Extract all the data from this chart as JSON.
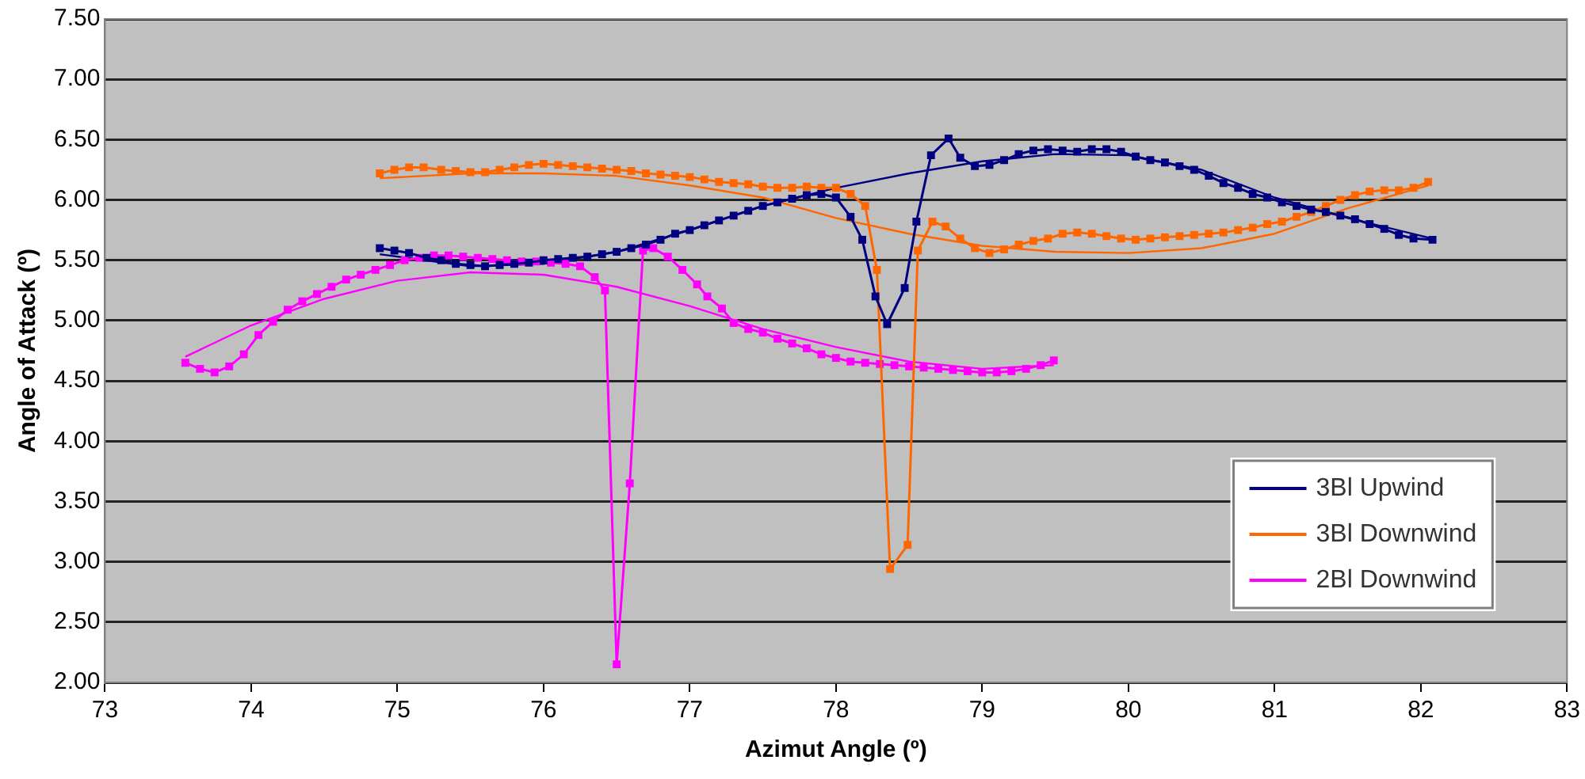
{
  "chart_data": {
    "type": "line",
    "xlabel": "Azimut Angle (º)",
    "ylabel": "Angle of Attack (º)",
    "xlim": [
      73,
      83
    ],
    "xticks": [
      73,
      74,
      75,
      76,
      77,
      78,
      79,
      80,
      81,
      82,
      83
    ],
    "ylim": [
      2,
      7.5
    ],
    "yticks": [
      {
        "value": 2,
        "label": "2.00"
      },
      {
        "value": 2.5,
        "label": "2.50"
      },
      {
        "value": 3,
        "label": "3.00"
      },
      {
        "value": 3.5,
        "label": "3.50"
      },
      {
        "value": 4,
        "label": "4.00"
      },
      {
        "value": 4.5,
        "label": "4.50"
      },
      {
        "value": 5,
        "label": "5.00"
      },
      {
        "value": 5.5,
        "label": "5.50"
      },
      {
        "value": 6,
        "label": "6.00"
      },
      {
        "value": 6.5,
        "label": "6.50"
      },
      {
        "value": 7,
        "label": "7.00"
      },
      {
        "value": 7.5,
        "label": "7.50"
      }
    ],
    "grid": "y",
    "legend": "bottom right",
    "marker": "square",
    "line_style": "solid",
    "series": [
      {
        "name": "3Bl Upwind",
        "color": "#000080",
        "x": [
          74.88,
          74.98,
          75.08,
          75.2,
          75.3,
          75.4,
          75.5,
          75.6,
          75.7,
          75.8,
          75.9,
          76.0,
          76.1,
          76.2,
          76.3,
          76.4,
          76.5,
          76.6,
          76.7,
          76.8,
          76.9,
          77.0,
          77.1,
          77.2,
          77.3,
          77.4,
          77.5,
          77.6,
          77.7,
          77.8,
          77.9,
          78.0,
          78.1,
          78.18,
          78.27,
          78.35,
          78.47,
          78.55,
          78.65,
          78.77,
          78.85,
          78.95,
          79.05,
          79.15,
          79.25,
          79.35,
          79.45,
          79.55,
          79.65,
          79.75,
          79.85,
          79.95,
          80.05,
          80.15,
          80.25,
          80.35,
          80.45,
          80.55,
          80.65,
          80.75,
          80.85,
          80.95,
          81.05,
          81.15,
          81.25,
          81.35,
          81.45,
          81.55,
          81.65,
          81.75,
          81.85,
          81.95,
          82.08
        ],
        "values": [
          5.6,
          5.58,
          5.56,
          5.52,
          5.5,
          5.47,
          5.46,
          5.45,
          5.46,
          5.47,
          5.48,
          5.5,
          5.51,
          5.52,
          5.53,
          5.55,
          5.57,
          5.6,
          5.63,
          5.67,
          5.72,
          5.75,
          5.79,
          5.83,
          5.87,
          5.91,
          5.95,
          5.98,
          6.01,
          6.04,
          6.05,
          6.02,
          5.86,
          5.67,
          5.2,
          4.97,
          5.27,
          5.82,
          6.37,
          6.51,
          6.35,
          6.28,
          6.29,
          6.33,
          6.38,
          6.41,
          6.42,
          6.41,
          6.4,
          6.42,
          6.42,
          6.4,
          6.36,
          6.33,
          6.31,
          6.28,
          6.25,
          6.2,
          6.14,
          6.1,
          6.05,
          6.02,
          5.98,
          5.95,
          5.92,
          5.9,
          5.87,
          5.84,
          5.8,
          5.76,
          5.71,
          5.68,
          5.67
        ]
      },
      {
        "name": "3Bl Downwind",
        "color": "#ff6600",
        "x": [
          74.88,
          74.98,
          75.08,
          75.18,
          75.3,
          75.4,
          75.5,
          75.6,
          75.7,
          75.8,
          75.9,
          76.0,
          76.1,
          76.2,
          76.3,
          76.4,
          76.5,
          76.6,
          76.7,
          76.8,
          76.9,
          77.0,
          77.1,
          77.2,
          77.3,
          77.4,
          77.5,
          77.6,
          77.7,
          77.8,
          77.9,
          78.0,
          78.1,
          78.2,
          78.28,
          78.37,
          78.49,
          78.56,
          78.66,
          78.75,
          78.85,
          78.95,
          79.05,
          79.15,
          79.25,
          79.35,
          79.45,
          79.55,
          79.65,
          79.75,
          79.85,
          79.95,
          80.05,
          80.15,
          80.25,
          80.35,
          80.45,
          80.55,
          80.65,
          80.75,
          80.85,
          80.95,
          81.05,
          81.15,
          81.25,
          81.35,
          81.45,
          81.55,
          81.65,
          81.75,
          81.85,
          81.95,
          82.05
        ],
        "values": [
          6.22,
          6.25,
          6.27,
          6.27,
          6.25,
          6.24,
          6.23,
          6.23,
          6.25,
          6.27,
          6.29,
          6.3,
          6.29,
          6.28,
          6.27,
          6.26,
          6.25,
          6.24,
          6.22,
          6.21,
          6.2,
          6.19,
          6.17,
          6.15,
          6.14,
          6.13,
          6.11,
          6.1,
          6.1,
          6.11,
          6.1,
          6.1,
          6.05,
          5.95,
          5.42,
          2.94,
          3.14,
          5.58,
          5.82,
          5.78,
          5.68,
          5.6,
          5.56,
          5.59,
          5.63,
          5.66,
          5.68,
          5.72,
          5.73,
          5.72,
          5.7,
          5.68,
          5.67,
          5.68,
          5.69,
          5.7,
          5.71,
          5.72,
          5.73,
          5.75,
          5.77,
          5.8,
          5.82,
          5.86,
          5.9,
          5.95,
          6.0,
          6.04,
          6.07,
          6.08,
          6.08,
          6.1,
          6.15
        ]
      },
      {
        "name": "2Bl Downwind",
        "color": "#ff00ff",
        "x": [
          73.55,
          73.65,
          73.75,
          73.85,
          73.95,
          74.05,
          74.15,
          74.25,
          74.35,
          74.45,
          74.55,
          74.65,
          74.75,
          74.85,
          74.95,
          75.05,
          75.15,
          75.25,
          75.35,
          75.45,
          75.55,
          75.65,
          75.75,
          75.85,
          75.95,
          76.05,
          76.15,
          76.25,
          76.35,
          76.42,
          76.5,
          76.59,
          76.68,
          76.75,
          76.85,
          76.95,
          77.05,
          77.12,
          77.22,
          77.3,
          77.4,
          77.5,
          77.6,
          77.7,
          77.8,
          77.9,
          78.0,
          78.1,
          78.2,
          78.3,
          78.4,
          78.5,
          78.6,
          78.7,
          78.8,
          78.9,
          79.0,
          79.1,
          79.2,
          79.3,
          79.4,
          79.49
        ],
        "values": [
          4.65,
          4.6,
          4.57,
          4.62,
          4.72,
          4.88,
          4.99,
          5.09,
          5.16,
          5.22,
          5.28,
          5.34,
          5.38,
          5.42,
          5.46,
          5.5,
          5.52,
          5.54,
          5.54,
          5.53,
          5.52,
          5.51,
          5.5,
          5.49,
          5.49,
          5.48,
          5.47,
          5.45,
          5.36,
          5.25,
          2.15,
          3.65,
          5.58,
          5.6,
          5.53,
          5.42,
          5.3,
          5.2,
          5.1,
          4.98,
          4.93,
          4.9,
          4.85,
          4.81,
          4.77,
          4.72,
          4.69,
          4.66,
          4.65,
          4.64,
          4.63,
          4.62,
          4.61,
          4.6,
          4.59,
          4.58,
          4.57,
          4.57,
          4.58,
          4.6,
          4.63,
          4.67
        ]
      },
      {
        "type": "line",
        "marker": "none",
        "color": "#000080",
        "x": [
          74.88,
          75.5,
          76.0,
          76.5,
          77.0,
          77.5,
          78.0,
          78.5,
          79.0,
          79.5,
          80.0,
          80.5,
          81.0,
          81.5,
          82.08
        ],
        "values": [
          5.55,
          5.45,
          5.47,
          5.57,
          5.75,
          5.95,
          6.1,
          6.22,
          6.32,
          6.38,
          6.37,
          6.25,
          6.02,
          5.85,
          5.68
        ]
      },
      {
        "type": "line",
        "marker": "none",
        "color": "#ff6600",
        "x": [
          74.88,
          75.5,
          76.0,
          76.5,
          77.0,
          77.5,
          78.0,
          78.5,
          79.0,
          79.5,
          80.0,
          80.5,
          81.0,
          81.5,
          82.05
        ],
        "values": [
          6.18,
          6.22,
          6.22,
          6.2,
          6.12,
          6.02,
          5.85,
          5.72,
          5.62,
          5.57,
          5.56,
          5.6,
          5.72,
          5.93,
          6.12
        ]
      },
      {
        "type": "line",
        "marker": "none",
        "color": "#ff00ff",
        "x": [
          73.55,
          74.0,
          74.5,
          75.0,
          75.5,
          76.0,
          76.5,
          77.0,
          77.5,
          78.0,
          78.5,
          79.0,
          79.49
        ],
        "values": [
          4.7,
          4.96,
          5.18,
          5.33,
          5.4,
          5.38,
          5.28,
          5.12,
          4.93,
          4.78,
          4.66,
          4.6,
          4.63
        ]
      }
    ]
  }
}
